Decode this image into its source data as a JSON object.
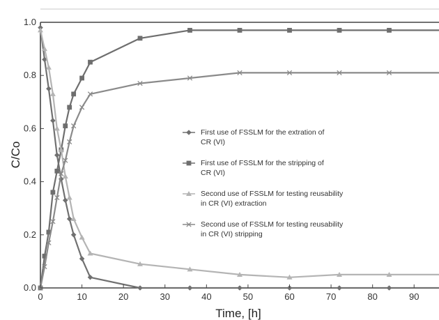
{
  "chart_data": {
    "type": "line",
    "title": "",
    "xlabel": "Time, [h]",
    "ylabel": "C/Co",
    "xlim": [
      0,
      96
    ],
    "ylim": [
      0,
      1.0
    ],
    "xticks": [
      "0",
      "10",
      "20",
      "30",
      "40",
      "50",
      "60",
      "70",
      "80",
      "90"
    ],
    "yticks": [
      "0.0",
      "0.2",
      "0.4",
      "0.6",
      "0.8",
      "1.0"
    ],
    "grid": false,
    "legend_placement": "center-right",
    "series": [
      {
        "name": "First use of FSSLM for the extration of CR (VI)",
        "legend_lines": [
          "First use of FSSLM for the extration of",
          "CR (VI)"
        ],
        "marker": "diamond",
        "color": "#707070",
        "x": [
          0,
          1,
          2,
          3,
          4,
          5,
          6,
          7,
          8,
          10,
          12,
          24,
          36,
          48,
          60,
          72,
          84,
          96
        ],
        "y": [
          0.98,
          0.86,
          0.75,
          0.63,
          0.5,
          0.41,
          0.33,
          0.26,
          0.2,
          0.11,
          0.04,
          0.0,
          0.0,
          0.0,
          0.0,
          0.0,
          0.0,
          0.0
        ]
      },
      {
        "name": "First use of FSSLM for the stripping of CR (VI)",
        "legend_lines": [
          "First use of FSSLM for the stripping of",
          "CR (VI)"
        ],
        "marker": "square",
        "color": "#6e6e6e",
        "x": [
          0,
          1,
          2,
          3,
          4,
          5,
          6,
          7,
          8,
          10,
          12,
          24,
          36,
          48,
          60,
          72,
          84,
          96
        ],
        "y": [
          0.0,
          0.12,
          0.21,
          0.36,
          0.44,
          0.52,
          0.61,
          0.68,
          0.73,
          0.79,
          0.85,
          0.94,
          0.97,
          0.97,
          0.97,
          0.97,
          0.97,
          0.97
        ]
      },
      {
        "name": "Second use of FSSLM for testing reusability in CR (VI) extraction",
        "legend_lines": [
          "Second use of FSSLM for testing reusability",
          "in CR (VI) extraction"
        ],
        "marker": "triangle",
        "color": "#b4b4b4",
        "x": [
          0,
          1,
          2,
          3,
          4,
          5,
          6,
          7,
          8,
          10,
          12,
          24,
          36,
          48,
          60,
          72,
          84,
          96
        ],
        "y": [
          0.97,
          0.9,
          0.83,
          0.73,
          0.6,
          0.52,
          0.42,
          0.34,
          0.26,
          0.19,
          0.13,
          0.09,
          0.07,
          0.05,
          0.04,
          0.05,
          0.05,
          0.05
        ]
      },
      {
        "name": "Second use of FSSLM for testing reusability in CR (VI) stripping",
        "legend_lines": [
          "Second use of FSSLM for testing reusability",
          "in CR (VI) stripping"
        ],
        "marker": "x",
        "color": "#8a8a8a",
        "x": [
          0,
          1,
          2,
          3,
          4,
          5,
          6,
          7,
          8,
          10,
          12,
          24,
          36,
          48,
          60,
          72,
          84,
          96
        ],
        "y": [
          0.0,
          0.08,
          0.17,
          0.25,
          0.34,
          0.43,
          0.48,
          0.55,
          0.61,
          0.68,
          0.73,
          0.77,
          0.79,
          0.81,
          0.81,
          0.81,
          0.81,
          0.81
        ]
      }
    ]
  }
}
